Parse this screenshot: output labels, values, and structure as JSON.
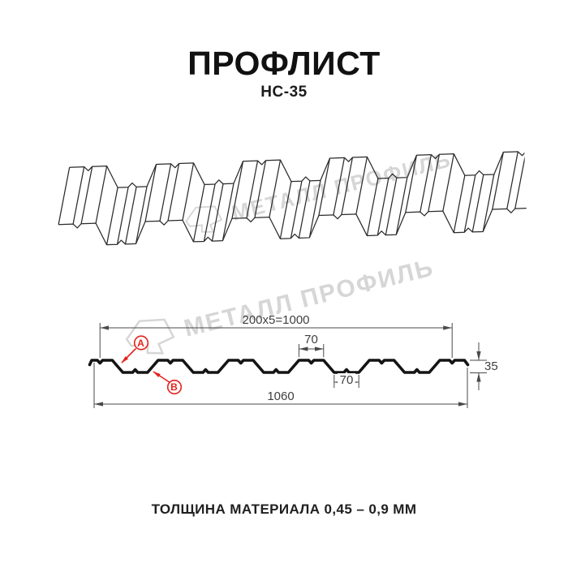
{
  "header": {
    "title": "ПРОФЛИСТ",
    "subtitle": "НС-35"
  },
  "watermark": {
    "brand": "МЕТАЛЛ ПРОФИЛЬ",
    "logo_icon": "metal-profil-logo-icon"
  },
  "section": {
    "dim_pitch": "200x5=1000",
    "dim_top_flange": "70",
    "dim_bottom_flange": "70",
    "dim_overall_width": "1060",
    "dim_height": "35",
    "marker_a": "A",
    "marker_b": "B"
  },
  "footer": {
    "thickness": "ТОЛЩИНА МАТЕРИАЛА 0,45 – 0,9 ММ"
  },
  "colors": {
    "accent": "#E3231E",
    "line": "#2B2B2B",
    "dimline": "#4A4A4A",
    "watermark": "#D6D6D6"
  }
}
